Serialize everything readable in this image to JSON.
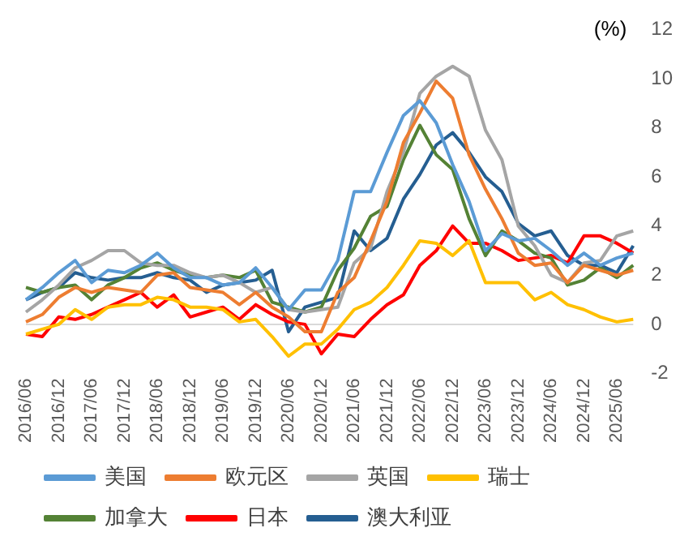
{
  "chart_data": {
    "type": "line",
    "ylabel": "(%)",
    "categories": [
      "2016/06",
      null,
      "2016/12",
      null,
      "2017/06",
      null,
      "2017/12",
      null,
      "2018/06",
      null,
      "2018/12",
      null,
      "2019/06",
      null,
      "2019/12",
      null,
      "2020/06",
      null,
      "2020/12",
      null,
      "2021/06",
      null,
      "2021/12",
      null,
      "2022/06",
      null,
      "2022/12",
      null,
      "2023/06",
      null,
      "2023/12",
      null,
      "2024/06",
      null,
      "2024/12",
      null,
      "2025/06",
      null
    ],
    "series": [
      {
        "name": "美国",
        "color": "#5b9bd5",
        "values": [
          1.0,
          1.5,
          2.1,
          2.6,
          1.7,
          2.2,
          2.1,
          2.4,
          2.9,
          2.3,
          1.9,
          1.9,
          1.6,
          1.7,
          2.3,
          1.5,
          0.6,
          1.4,
          1.4,
          2.6,
          5.4,
          5.4,
          7.0,
          8.5,
          9.1,
          8.2,
          6.5,
          5.0,
          3.0,
          3.7,
          3.4,
          3.5,
          3.0,
          2.4,
          2.9,
          2.4,
          2.7,
          2.9
        ]
      },
      {
        "name": "欧元区",
        "color": "#ed7d31",
        "values": [
          0.1,
          0.4,
          1.1,
          1.5,
          1.3,
          1.5,
          1.4,
          1.3,
          2.0,
          2.1,
          1.5,
          1.4,
          1.3,
          0.8,
          1.3,
          0.7,
          0.3,
          -0.3,
          -0.3,
          1.3,
          1.9,
          3.4,
          5.0,
          7.4,
          8.6,
          9.9,
          9.2,
          6.9,
          5.5,
          4.3,
          2.9,
          2.4,
          2.5,
          1.7,
          2.4,
          2.2,
          2.0,
          2.2
        ]
      },
      {
        "name": "英国",
        "color": "#a5a5a5",
        "values": [
          0.5,
          1.0,
          1.6,
          2.3,
          2.6,
          3.0,
          3.0,
          2.5,
          2.4,
          2.4,
          2.1,
          1.9,
          2.0,
          1.7,
          1.3,
          1.5,
          0.6,
          0.5,
          0.6,
          0.7,
          2.5,
          3.1,
          5.4,
          7.0,
          9.4,
          10.1,
          10.5,
          10.1,
          7.9,
          6.7,
          4.0,
          3.2,
          2.0,
          1.7,
          2.5,
          2.6,
          3.6,
          3.8
        ]
      },
      {
        "name": "瑞士",
        "color": "#ffc000",
        "values": [
          -0.4,
          -0.2,
          0.0,
          0.6,
          0.2,
          0.7,
          0.8,
          0.8,
          1.1,
          1.0,
          0.7,
          0.7,
          0.6,
          0.1,
          0.2,
          -0.5,
          -1.3,
          -0.8,
          -0.8,
          -0.2,
          0.6,
          0.9,
          1.5,
          2.4,
          3.4,
          3.3,
          2.8,
          3.4,
          1.7,
          1.7,
          1.7,
          1.0,
          1.3,
          0.8,
          0.6,
          0.3,
          0.1,
          0.2
        ]
      },
      {
        "name": "加拿大",
        "color": "#548235",
        "values": [
          1.5,
          1.3,
          1.5,
          1.6,
          1.0,
          1.6,
          1.9,
          2.3,
          2.5,
          2.2,
          2.0,
          1.9,
          2.0,
          1.9,
          2.2,
          0.9,
          0.7,
          0.5,
          0.7,
          2.2,
          3.1,
          4.4,
          4.8,
          6.7,
          8.1,
          6.9,
          6.3,
          4.3,
          2.8,
          3.8,
          3.4,
          2.9,
          2.7,
          1.6,
          1.8,
          2.3,
          1.9,
          2.4
        ]
      },
      {
        "name": "日本",
        "color": "#ff0000",
        "values": [
          -0.4,
          -0.5,
          0.3,
          0.2,
          0.4,
          0.7,
          1.0,
          1.3,
          0.7,
          1.2,
          0.3,
          0.5,
          0.7,
          0.2,
          0.8,
          0.4,
          0.1,
          0.0,
          -1.2,
          -0.4,
          -0.5,
          0.2,
          0.8,
          1.2,
          2.4,
          3.0,
          4.0,
          3.3,
          3.3,
          3.0,
          2.6,
          2.7,
          2.8,
          2.5,
          3.6,
          3.6,
          3.3,
          2.9
        ]
      },
      {
        "name": "澳大利亚",
        "color": "#255e91",
        "values": [
          1.0,
          1.3,
          1.5,
          2.1,
          1.9,
          1.8,
          1.9,
          1.9,
          2.1,
          1.9,
          1.8,
          1.3,
          1.6,
          1.7,
          1.8,
          2.2,
          -0.3,
          0.7,
          0.9,
          1.1,
          3.8,
          3.0,
          3.5,
          5.1,
          6.1,
          7.3,
          7.8,
          7.0,
          6.0,
          5.4,
          4.1,
          3.6,
          3.8,
          2.8,
          2.4,
          2.4,
          2.1,
          3.2
        ]
      }
    ],
    "ref_lines": [
      {
        "axis": "y",
        "value": 0,
        "color": "#d9d9d9"
      }
    ],
    "ylim": [
      -2,
      12
    ],
    "yticks": [
      -2,
      0,
      2,
      4,
      6,
      8,
      10,
      12
    ],
    "grid": false,
    "legend": "bottom",
    "marker": "none",
    "line_style": "solid"
  }
}
